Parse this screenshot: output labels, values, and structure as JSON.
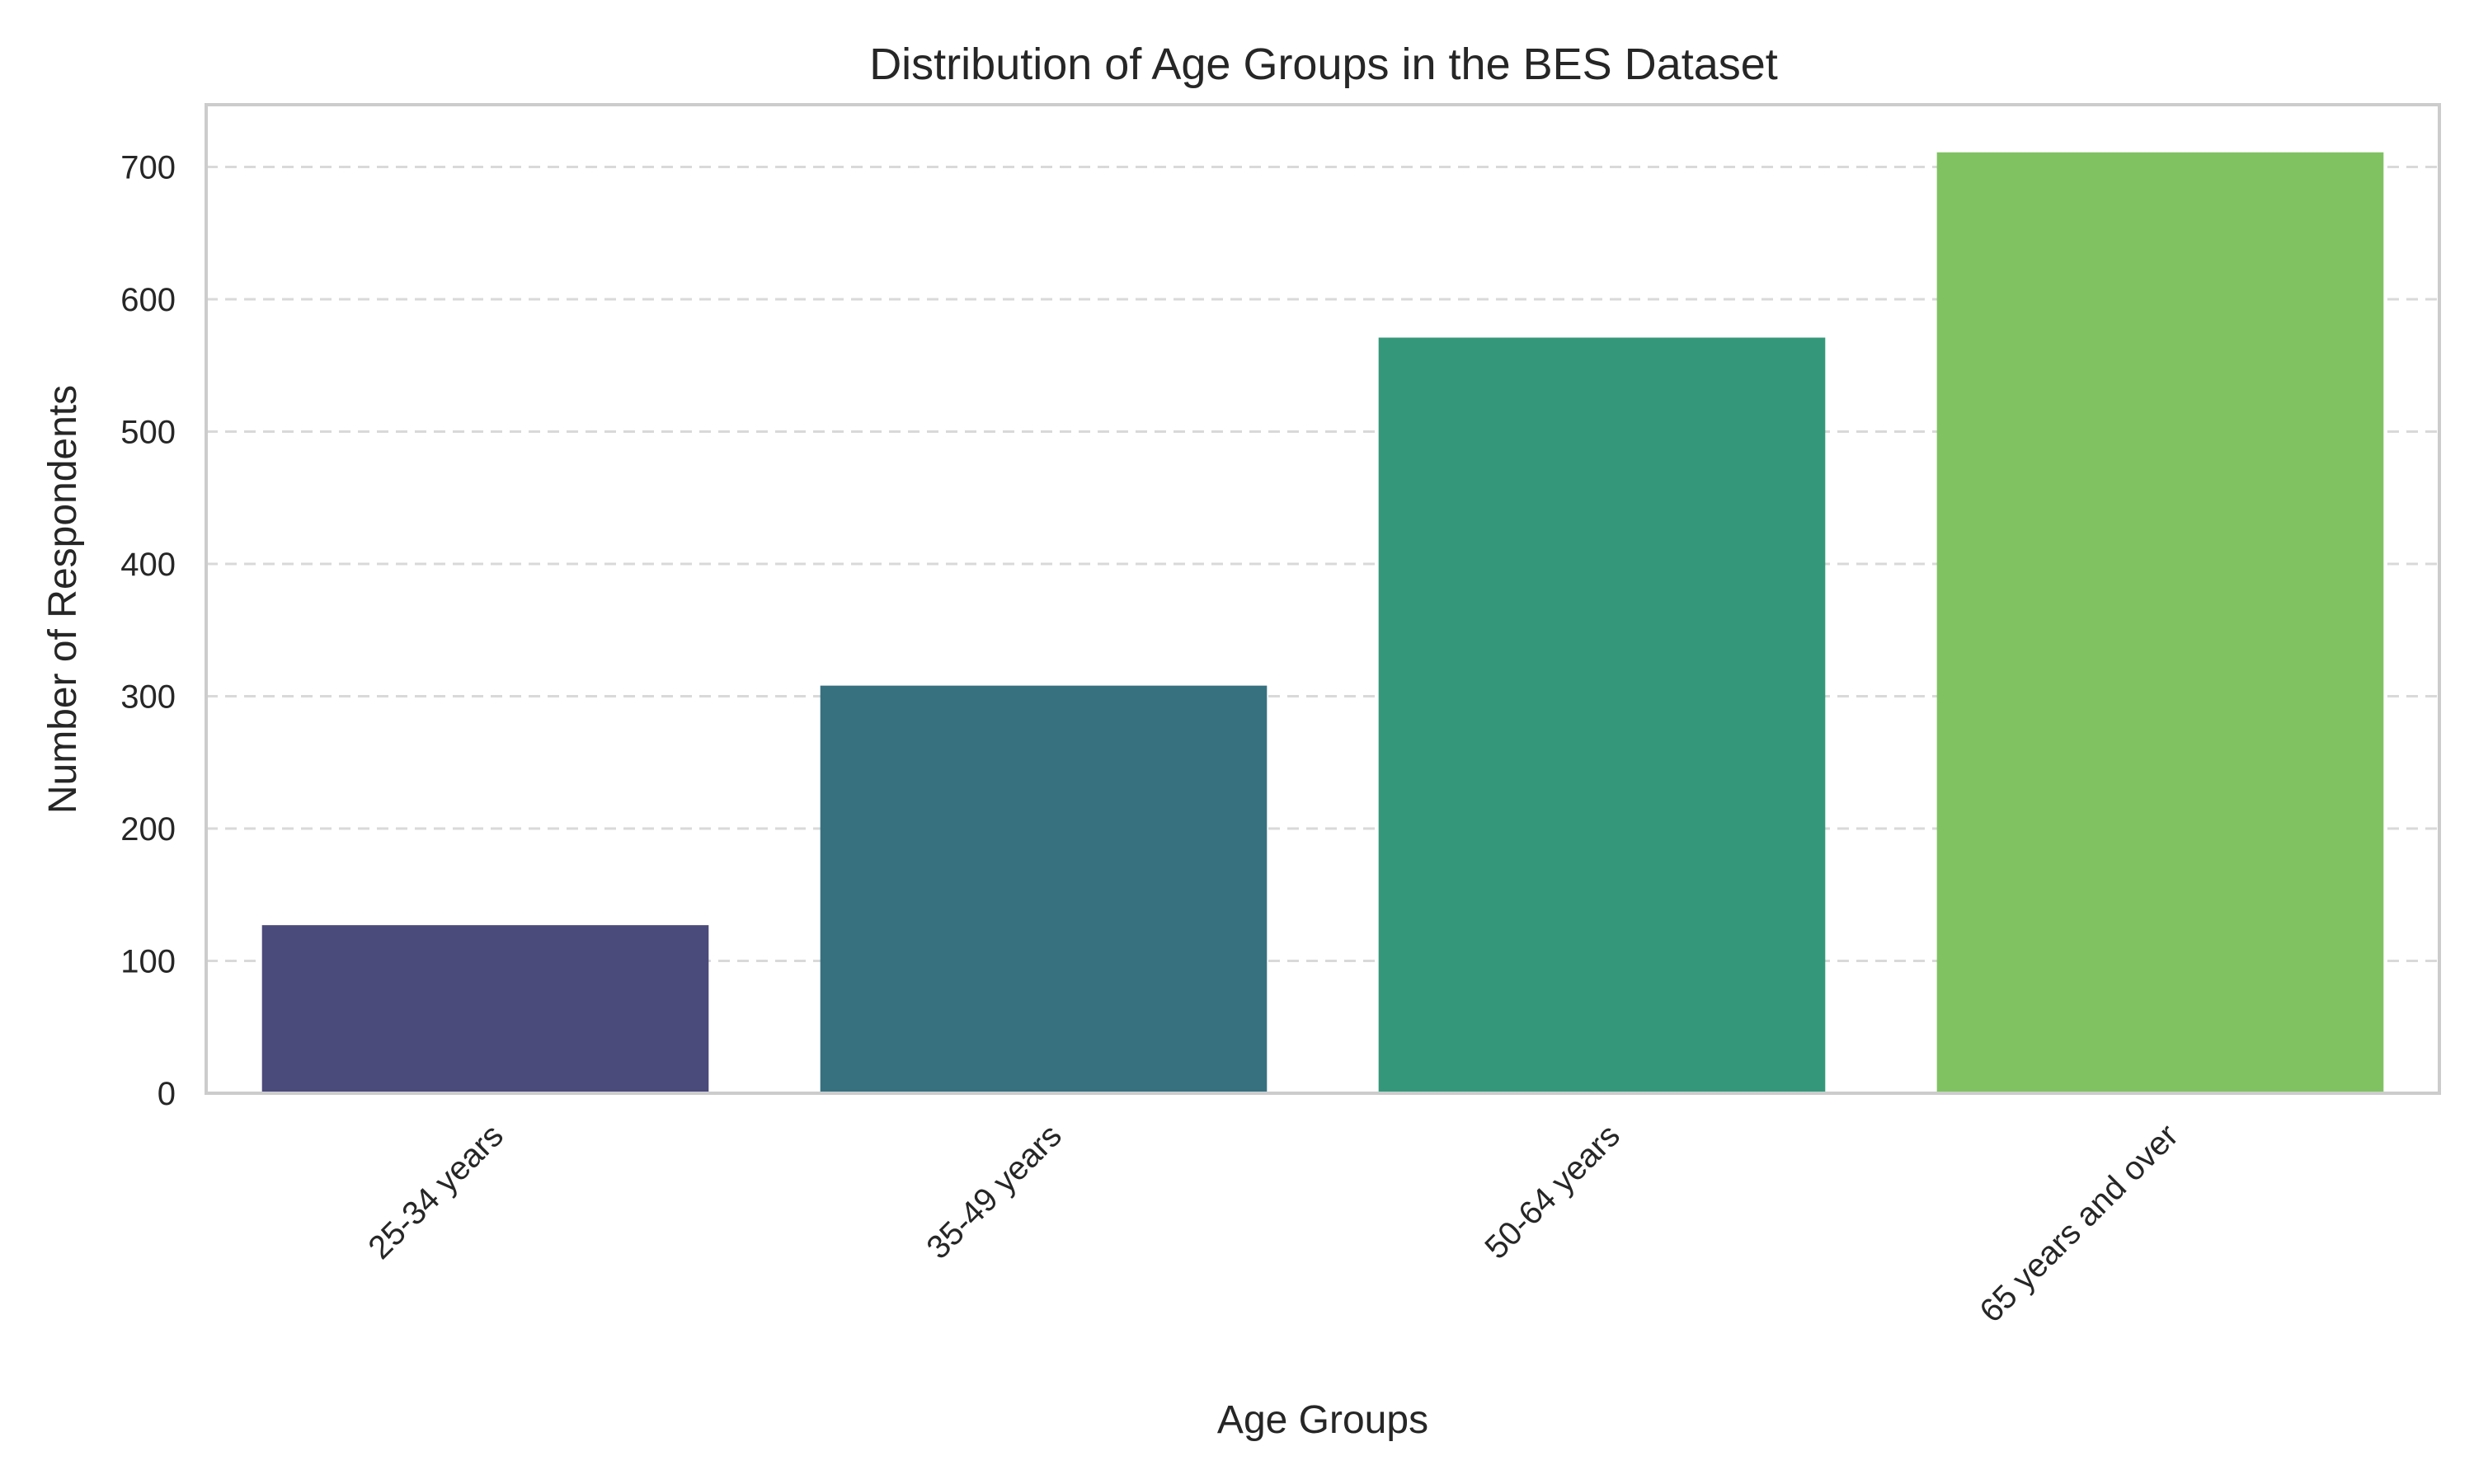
{
  "chart_data": {
    "type": "bar",
    "title": "Distribution of Age Groups in the BES Dataset",
    "xlabel": "Age Groups",
    "ylabel": "Number of Respondents",
    "categories": [
      "25-34 years",
      "35-49 years",
      "50-64 years",
      "65 years and over"
    ],
    "values": [
      127,
      308,
      571,
      711
    ],
    "ylim": [
      0,
      747
    ],
    "yticks": [
      0,
      100,
      200,
      300,
      400,
      500,
      600,
      700
    ],
    "grid": "horizontal dashed",
    "colors": [
      "#4a4a7b",
      "#37717f",
      "#359779",
      "#80c262"
    ]
  }
}
